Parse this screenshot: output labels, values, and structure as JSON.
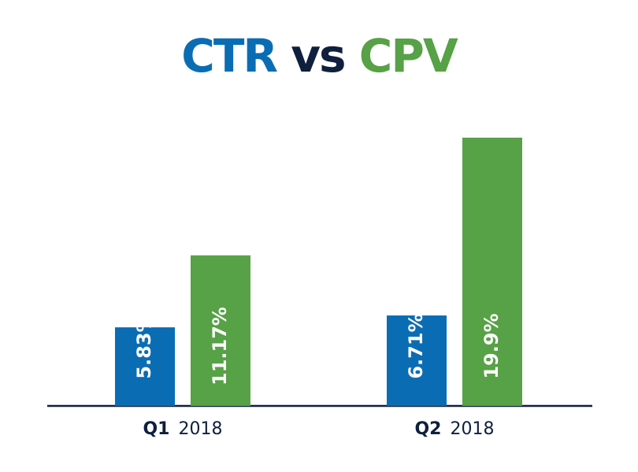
{
  "chart_data": {
    "type": "bar",
    "title": "CTR vs CPV",
    "title_color": "#0f1f3d",
    "categories": [
      "Q1 2018",
      "Q2 2018"
    ],
    "series": [
      {
        "name": "CTR",
        "color": "#0a6db4",
        "values": [
          5.83,
          6.71
        ],
        "value_labels": [
          "5.83%",
          "6.71%"
        ]
      },
      {
        "name": "CPV",
        "color": "#57a146",
        "values": [
          11.17,
          19.9
        ],
        "value_labels": [
          "11.17%",
          "19.9%"
        ]
      }
    ]
  }
}
